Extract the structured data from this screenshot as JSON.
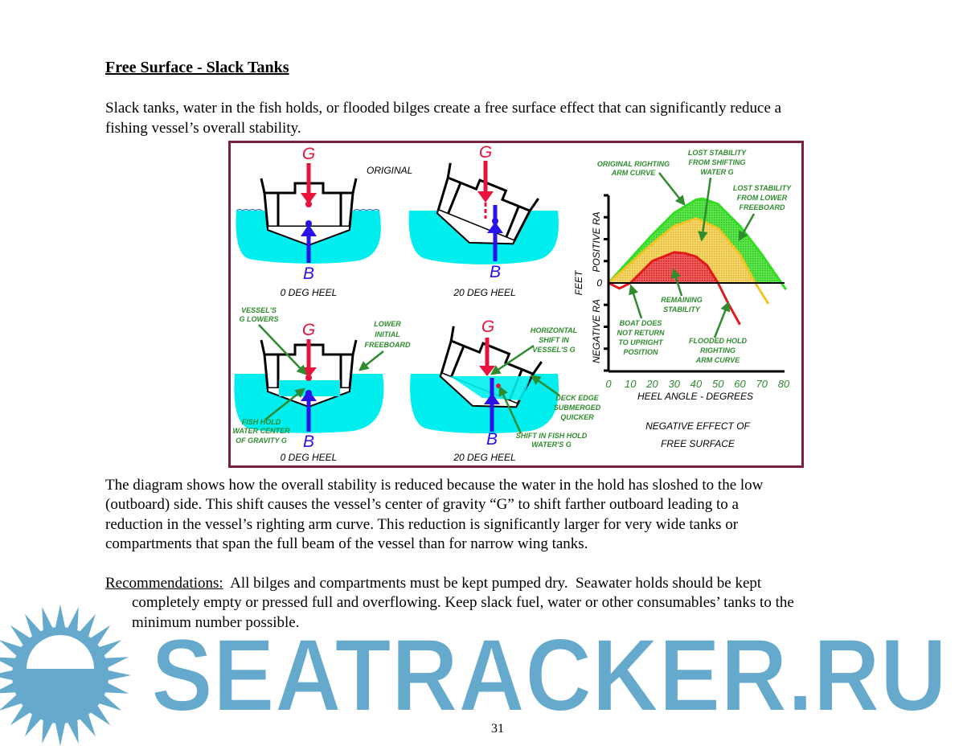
{
  "title": "Free Surface - Slack Tanks",
  "intro": [
    "Slack tanks, water in the fish holds, or flooded bilges create a free surface effect that can significantly reduce a",
    "fishing vessel’s overall stability."
  ],
  "figure": {
    "colors": {
      "border": "#7a1f3d",
      "water": "#00eeee",
      "G": "#e8123c",
      "B": "#2a13e8",
      "label": "#2e8b2e",
      "original_curve": "#33dd22",
      "shifted_curve": "#f2c423",
      "flooded_curve": "#e31a1a"
    },
    "original_label": "ORIGINAL",
    "G": "G",
    "B": "B",
    "captions": [
      "0 DEG HEEL",
      "20 DEG HEEL",
      "0 DEG HEEL",
      "20 DEG HEEL"
    ],
    "labels": {
      "vessels_g_lowers": [
        "VESSEL'S",
        "G LOWERS"
      ],
      "lower_initial_freeboard": [
        "LOWER",
        "INITIAL",
        "FREEBOARD"
      ],
      "fish_hold_water": [
        "FISH HOLD",
        "WATER CENTER",
        "OF GRAVITY G"
      ],
      "horizontal_shift": [
        "HORIZONTAL",
        "SHIFT IN",
        "VESSEL'S G"
      ],
      "deck_edge": [
        "DECK EDGE",
        "SUBMERGED",
        "QUICKER"
      ],
      "shift_fish_hold": [
        "SHIFT IN FISH HOLD",
        "WATER'S G"
      ]
    },
    "chart_title": [
      "NEGATIVE EFFECT OF",
      "FREE SURFACE"
    ]
  },
  "chart_data": {
    "type": "area",
    "xlabel": "HEEL ANGLE - DEGREES",
    "ylabel": "FEET",
    "ylabel_positive": "POSITIVE RA",
    "ylabel_negative": "NEGATIVE RA",
    "y_tick_label": "0",
    "xticks": [
      "0",
      "10",
      "20",
      "30",
      "40",
      "50",
      "60",
      "70",
      "80"
    ],
    "xlim": [
      0,
      80
    ],
    "ylim": [
      -4,
      4
    ],
    "series": [
      {
        "key": "original",
        "color": "#33dd22",
        "x": [
          0,
          10,
          20,
          30,
          40,
          43,
          50,
          60,
          70,
          79,
          81
        ],
        "y": [
          0,
          1.1,
          2.2,
          3.2,
          3.8,
          3.85,
          3.6,
          2.6,
          1.3,
          0,
          -0.3
        ]
      },
      {
        "key": "shifted",
        "color": "#f2c423",
        "x": [
          0,
          10,
          20,
          30,
          40,
          50,
          60,
          67,
          73
        ],
        "y": [
          0,
          0.9,
          1.8,
          2.6,
          2.95,
          2.5,
          1.3,
          0,
          -0.95
        ]
      },
      {
        "key": "flooded",
        "color": "#e31a1a",
        "x": [
          0,
          5,
          10,
          20,
          30,
          35,
          40,
          45,
          50,
          55,
          60
        ],
        "y": [
          0,
          -0.25,
          0,
          1.0,
          1.4,
          1.35,
          1.2,
          0.8,
          0,
          -1.0,
          -1.9
        ]
      }
    ],
    "annotations": {
      "original": [
        "ORIGINAL RIGHTING",
        "ARM CURVE"
      ],
      "lost_shift": [
        "LOST STABILITY",
        "FROM SHIFTING",
        "WATER G"
      ],
      "lost_freeboard": [
        "LOST STABILITY",
        "FROM LOWER",
        "FREEBOARD"
      ],
      "remaining": [
        "REMAINING",
        "STABILITY"
      ],
      "no_return": [
        "BOAT DOES",
        "NOT RETURN",
        "TO UPRIGHT",
        "POSITION"
      ],
      "flooded": [
        "FLOODED HOLD",
        "RIGHTING",
        "ARM CURVE"
      ]
    }
  },
  "body": [
    "The diagram shows how the overall stability is reduced because the water in the hold has sloshed to the low",
    "(outboard) side.  This shift causes the vessel’s center of gravity “G” to shift farther outboard leading to a",
    "reduction in the vessel’s righting arm curve.  This reduction is significantly larger for very wide tanks or",
    "compartments that span the full beam of the vessel than for narrow wing tanks."
  ],
  "recommendations": {
    "label": "Recommendations:",
    "lines": [
      "  All bilges and compartments must be kept pumped dry.  Seawater holds should be kept",
      "completely empty or pressed full and overflowing.  Keep slack fuel, water or other consumables’ tanks to the",
      "minimum number possible."
    ]
  },
  "watermark": {
    "text": "SEATRACKER.RU",
    "color": "#65a9cc"
  },
  "page_number": "31"
}
